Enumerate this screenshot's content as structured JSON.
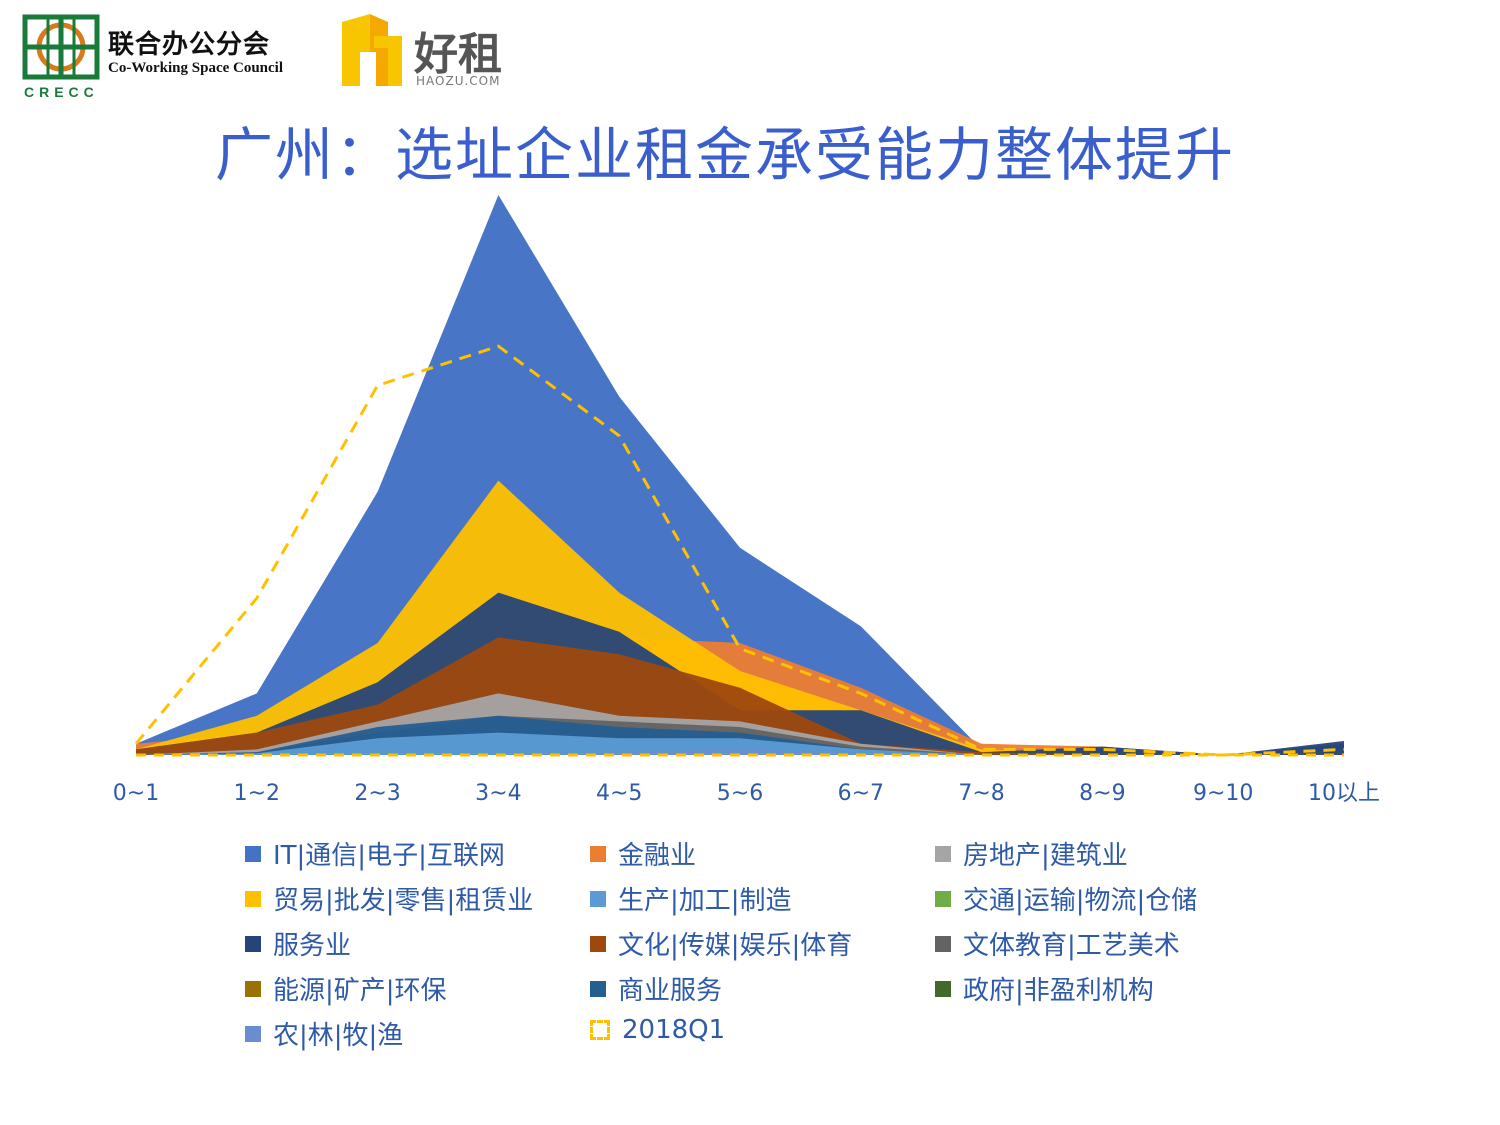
{
  "header": {
    "logo_cn": "联合办公分会",
    "logo_en": "Co-Working Space Council",
    "logo_abbr": "CRECC",
    "brand_cn": "好租",
    "brand_en": "HAOZU.COM"
  },
  "title": "广州：选址企业租金承受能力整体提升",
  "chart_data": {
    "type": "area",
    "categories": [
      "0~1",
      "1~2",
      "2~3",
      "3~4",
      "4~5",
      "5~6",
      "6~7",
      "7~8",
      "8~9",
      "9~10",
      "10以上"
    ],
    "ylim": [
      0,
      100
    ],
    "series": [
      {
        "name": "IT|通信|电子|互联网",
        "color": "#4472c4",
        "values": [
          2,
          11,
          47,
          100,
          64,
          37,
          23,
          1,
          1.5,
          0,
          2
        ]
      },
      {
        "name": "金融业",
        "color": "#ed7d31",
        "values": [
          2,
          4,
          12,
          27,
          21,
          20,
          12,
          2,
          1.5,
          0,
          1
        ]
      },
      {
        "name": "贸易|批发|零售|租赁业",
        "color": "#ffc000",
        "values": [
          1,
          7,
          20,
          49,
          29,
          15,
          8,
          1,
          0.5,
          0,
          0.5
        ]
      },
      {
        "name": "服务业",
        "color": "#264478",
        "values": [
          1,
          4,
          13,
          29,
          22,
          8,
          8,
          0.5,
          1.5,
          0,
          2.5
        ]
      },
      {
        "name": "文化|传媒|娱乐|体育",
        "color": "#9e480e",
        "values": [
          1,
          4,
          9,
          21,
          18,
          12,
          2,
          0.5,
          0,
          0,
          0
        ]
      },
      {
        "name": "房地产|建筑业",
        "color": "#a5a5a5",
        "values": [
          0,
          1,
          6,
          11,
          7,
          6,
          2,
          0,
          0,
          0,
          0
        ]
      },
      {
        "name": "文体教育|工艺美术",
        "color": "#636363",
        "values": [
          0,
          0.5,
          4,
          7,
          6,
          5,
          1.5,
          0,
          0,
          0,
          0
        ]
      },
      {
        "name": "商业服务",
        "color": "#255e91",
        "values": [
          0,
          0.5,
          5,
          7,
          5,
          4,
          1,
          0,
          0,
          0,
          0
        ]
      },
      {
        "name": "生产|加工|制造",
        "color": "#5b9bd5",
        "values": [
          0,
          0.3,
          3,
          4,
          3,
          3,
          1,
          0,
          0,
          0,
          0
        ]
      },
      {
        "name": "交通|运输|物流|仓储",
        "color": "#70ad47",
        "values": [
          0,
          0,
          0,
          0,
          0,
          0,
          0,
          0,
          0,
          0,
          0
        ]
      },
      {
        "name": "能源|矿产|环保",
        "color": "#997300",
        "values": [
          0,
          0,
          0,
          0,
          0,
          0,
          0,
          0,
          0,
          0,
          0
        ]
      },
      {
        "name": "政府|非盈利机构",
        "color": "#43682b",
        "values": [
          0,
          0,
          0,
          0,
          0,
          0,
          0,
          0,
          0,
          0,
          0
        ]
      },
      {
        "name": "农|林|牧|渔",
        "color": "#698ed0",
        "values": [
          0,
          0,
          0,
          0,
          0.5,
          1,
          0.3,
          0,
          0,
          0,
          0
        ]
      }
    ],
    "dashed_series": {
      "name": "2018Q1",
      "color": "#ffc000",
      "values": [
        2,
        28,
        66,
        73,
        57,
        19,
        11,
        1,
        1,
        0,
        1
      ]
    },
    "legend_order": [
      "IT|通信|电子|互联网",
      "金融业",
      "房地产|建筑业",
      "贸易|批发|零售|租赁业",
      "生产|加工|制造",
      "交通|运输|物流|仓储",
      "服务业",
      "文化|传媒|娱乐|体育",
      "文体教育|工艺美术",
      "能源|矿产|环保",
      "商业服务",
      "政府|非盈利机构",
      "农|林|牧|渔",
      "2018Q1"
    ]
  }
}
